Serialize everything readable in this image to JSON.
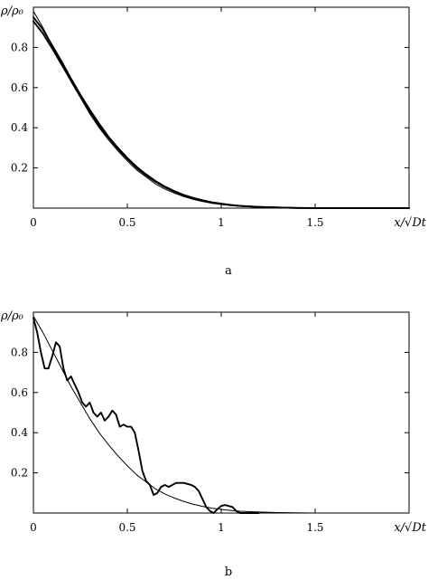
{
  "chart_data": [
    {
      "type": "line",
      "panel_label": "a",
      "ylabel": "ρ/ρ₀",
      "xlabel": "x/√Dt",
      "xlim": [
        0,
        2.0
      ],
      "ylim": [
        0,
        1.0
      ],
      "xticks": [
        0,
        0.5,
        1,
        1.5
      ],
      "xtick_labels": [
        "0",
        "0.5",
        "1",
        "1.5"
      ],
      "yticks": [
        0.2,
        0.4,
        0.6,
        0.8
      ],
      "ytick_labels": [
        "0.2",
        "0.4",
        "0.6",
        "0.8"
      ],
      "grid": false,
      "series": [
        {
          "style": "thin",
          "x": [
            0,
            0.05,
            0.1,
            0.15,
            0.2,
            0.25,
            0.3,
            0.35,
            0.4,
            0.45,
            0.5,
            0.55,
            0.6,
            0.65,
            0.7,
            0.75,
            0.8,
            0.85,
            0.9,
            0.95,
            1.0,
            1.05,
            1.1,
            1.2,
            1.3,
            1.4,
            1.5,
            1.7,
            2.0
          ],
          "y": [
            0.98,
            0.9,
            0.81,
            0.72,
            0.63,
            0.55,
            0.47,
            0.4,
            0.34,
            0.285,
            0.235,
            0.19,
            0.155,
            0.12,
            0.095,
            0.075,
            0.058,
            0.044,
            0.033,
            0.024,
            0.018,
            0.013,
            0.009,
            0.005,
            0.002,
            0.001,
            0.0,
            0.0,
            0.0
          ]
        },
        {
          "style": "thick",
          "x": [
            0,
            0.05,
            0.1,
            0.15,
            0.2,
            0.25,
            0.3,
            0.35,
            0.4,
            0.45,
            0.5,
            0.55,
            0.6,
            0.65,
            0.7,
            0.75,
            0.8,
            0.85,
            0.9,
            0.95,
            1.0,
            1.05,
            1.1,
            1.2,
            1.3,
            1.4,
            1.5,
            1.7,
            2.0
          ],
          "y": [
            0.95,
            0.89,
            0.81,
            0.73,
            0.645,
            0.565,
            0.49,
            0.42,
            0.355,
            0.3,
            0.25,
            0.205,
            0.168,
            0.135,
            0.107,
            0.085,
            0.066,
            0.051,
            0.039,
            0.029,
            0.022,
            0.016,
            0.011,
            0.006,
            0.003,
            0.001,
            0.0,
            0.0,
            0.0
          ]
        },
        {
          "style": "thick",
          "x": [
            0,
            0.05,
            0.1,
            0.15,
            0.2,
            0.25,
            0.3,
            0.35,
            0.4,
            0.45,
            0.5,
            0.55,
            0.6,
            0.65,
            0.7,
            0.75,
            0.8,
            0.85,
            0.9,
            0.95,
            1.0,
            1.05,
            1.1,
            1.2,
            1.3,
            1.4,
            1.5,
            1.7,
            2.0
          ],
          "y": [
            0.93,
            0.87,
            0.795,
            0.715,
            0.635,
            0.555,
            0.48,
            0.41,
            0.35,
            0.295,
            0.245,
            0.2,
            0.163,
            0.131,
            0.104,
            0.082,
            0.064,
            0.049,
            0.037,
            0.028,
            0.021,
            0.015,
            0.011,
            0.006,
            0.003,
            0.001,
            0.0,
            0.0,
            0.0
          ]
        }
      ]
    },
    {
      "type": "line",
      "panel_label": "b",
      "ylabel": "ρ/ρ₀",
      "xlabel": "x/√Dt",
      "xlim": [
        0,
        2.0
      ],
      "ylim": [
        0,
        1.0
      ],
      "xticks": [
        0,
        0.5,
        1,
        1.5
      ],
      "xtick_labels": [
        "0",
        "0.5",
        "1",
        "1.5"
      ],
      "yticks": [
        0.2,
        0.4,
        0.6,
        0.8
      ],
      "ytick_labels": [
        "0.2",
        "0.4",
        "0.6",
        "0.8"
      ],
      "grid": false,
      "series": [
        {
          "style": "thin",
          "x": [
            0,
            0.05,
            0.1,
            0.15,
            0.2,
            0.25,
            0.3,
            0.35,
            0.4,
            0.45,
            0.5,
            0.55,
            0.6,
            0.65,
            0.7,
            0.75,
            0.8,
            0.85,
            0.9,
            0.95,
            1.0,
            1.05,
            1.1,
            1.2,
            1.3,
            1.4,
            1.5,
            1.7,
            2.0
          ],
          "y": [
            0.98,
            0.9,
            0.81,
            0.72,
            0.63,
            0.55,
            0.47,
            0.4,
            0.34,
            0.285,
            0.235,
            0.19,
            0.155,
            0.12,
            0.095,
            0.075,
            0.058,
            0.044,
            0.033,
            0.024,
            0.018,
            0.013,
            0.009,
            0.005,
            0.002,
            0.001,
            0.0,
            0.0,
            0.0
          ]
        },
        {
          "style": "thick",
          "x": [
            0,
            0.02,
            0.04,
            0.06,
            0.08,
            0.1,
            0.12,
            0.14,
            0.16,
            0.18,
            0.2,
            0.22,
            0.24,
            0.26,
            0.28,
            0.3,
            0.32,
            0.34,
            0.36,
            0.38,
            0.4,
            0.42,
            0.44,
            0.46,
            0.48,
            0.5,
            0.52,
            0.54,
            0.56,
            0.58,
            0.6,
            0.62,
            0.64,
            0.66,
            0.68,
            0.7,
            0.72,
            0.74,
            0.76,
            0.78,
            0.8,
            0.82,
            0.84,
            0.86,
            0.88,
            0.9,
            0.92,
            0.94,
            0.96,
            0.98,
            1.0,
            1.02,
            1.04,
            1.06,
            1.08,
            1.1,
            1.15,
            1.2
          ],
          "y": [
            0.97,
            0.9,
            0.8,
            0.72,
            0.72,
            0.78,
            0.85,
            0.83,
            0.72,
            0.66,
            0.68,
            0.64,
            0.6,
            0.55,
            0.53,
            0.55,
            0.5,
            0.48,
            0.5,
            0.46,
            0.48,
            0.51,
            0.49,
            0.43,
            0.44,
            0.43,
            0.43,
            0.4,
            0.31,
            0.21,
            0.16,
            0.14,
            0.09,
            0.1,
            0.13,
            0.14,
            0.13,
            0.14,
            0.15,
            0.15,
            0.15,
            0.145,
            0.14,
            0.13,
            0.11,
            0.07,
            0.03,
            0.01,
            0.0,
            0.02,
            0.035,
            0.04,
            0.035,
            0.03,
            0.01,
            0.0,
            0.0,
            0.0
          ]
        }
      ]
    }
  ]
}
